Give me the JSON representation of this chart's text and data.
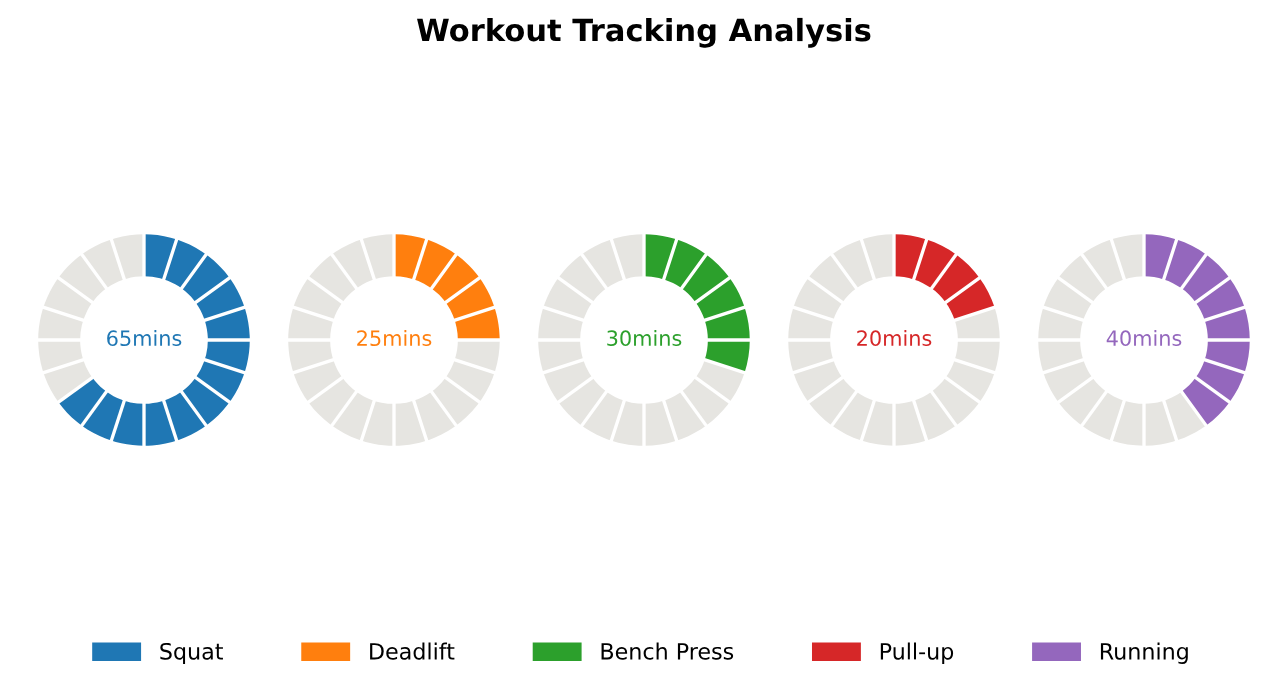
{
  "chart_data": [
    {
      "type": "donut",
      "categories": [
        "Squat",
        null
      ],
      "values": [
        65,
        35
      ],
      "colors": [
        "#1f77b4",
        "#e6e5e1"
      ],
      "annotations": [
        "65mins"
      ],
      "legend": "bottom"
    },
    {
      "type": "donut",
      "categories": [
        "Deadlift",
        null
      ],
      "values": [
        25,
        75
      ],
      "colors": [
        "#ff7f0e",
        "#e6e5e1"
      ],
      "annotations": [
        "25mins"
      ],
      "legend": "bottom"
    },
    {
      "type": "donut",
      "title": "Workout Tracking Analysis",
      "categories": [
        "Bench Press",
        null
      ],
      "values": [
        30,
        70
      ],
      "colors": [
        "#2ca02c",
        "#e6e5e1"
      ],
      "annotations": [
        "30mins"
      ],
      "legend": "bottom"
    },
    {
      "type": "donut",
      "categories": [
        "Pull-up",
        null
      ],
      "values": [
        20,
        80
      ],
      "colors": [
        "#d62728",
        "#e6e5e1"
      ],
      "annotations": [
        "20mins"
      ],
      "legend": "bottom"
    },
    {
      "type": "donut",
      "categories": [
        "Running",
        null
      ],
      "values": [
        40,
        60
      ],
      "colors": [
        "#9467bd",
        "#e6e5e1"
      ],
      "annotations": [
        "40mins"
      ],
      "legend": "bottom"
    }
  ]
}
